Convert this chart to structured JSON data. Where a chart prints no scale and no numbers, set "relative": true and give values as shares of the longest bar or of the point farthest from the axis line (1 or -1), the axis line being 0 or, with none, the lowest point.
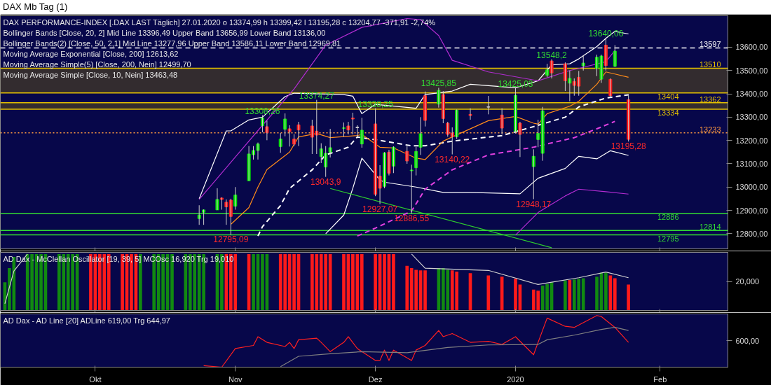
{
  "chart_data": [
    {
      "type": "candlestick",
      "title": "DAX Mb Tag (1)",
      "x": [
        "2019-10-24",
        "2019-10-25",
        "2019-10-28",
        "2019-10-29",
        "2019-10-30",
        "2019-10-31",
        "2019-11-01",
        "2019-11-04",
        "2019-11-05",
        "2019-11-06",
        "2019-11-07",
        "2019-11-08",
        "2019-11-11",
        "2019-11-12",
        "2019-11-13",
        "2019-11-14",
        "2019-11-15",
        "2019-11-18",
        "2019-11-19",
        "2019-11-20",
        "2019-11-21",
        "2019-11-22",
        "2019-11-25",
        "2019-11-26",
        "2019-11-27",
        "2019-11-28",
        "2019-11-29",
        "2019-12-02",
        "2019-12-03",
        "2019-12-04",
        "2019-12-05",
        "2019-12-06",
        "2019-12-09",
        "2019-12-10",
        "2019-12-11",
        "2019-12-12",
        "2019-12-13",
        "2019-12-16",
        "2019-12-17",
        "2019-12-18",
        "2019-12-19",
        "2019-12-20",
        "2019-12-23",
        "2019-12-27",
        "2019-12-30",
        "2020-01-02",
        "2020-01-03",
        "2020-01-06",
        "2020-01-07",
        "2020-01-08",
        "2020-01-09",
        "2020-01-10",
        "2020-01-13",
        "2020-01-14",
        "2020-01-15",
        "2020-01-16",
        "2020-01-17",
        "2020-01-20",
        "2020-01-21",
        "2020-01-22",
        "2020-01-23",
        "2020-01-24",
        "2020-01-27"
      ],
      "ohlc": [
        [
          12865,
          12922,
          12838,
          12880
        ],
        [
          12892,
          12904,
          12838,
          12902
        ],
        [
          12902,
          12995,
          12902,
          12947
        ],
        [
          12953,
          12956,
          12903,
          12947
        ],
        [
          12935,
          12947,
          12838,
          12915
        ],
        [
          12944,
          12950,
          12795.09,
          12874
        ],
        [
          12918,
          13000,
          12903,
          12966
        ],
        [
          13027,
          13176,
          13027,
          13142
        ],
        [
          13139,
          13176,
          13118,
          13157
        ],
        [
          13157,
          13191,
          13118,
          13185
        ],
        [
          13263,
          13308.26,
          13235,
          13297
        ],
        [
          13259,
          13285,
          13201,
          13233
        ],
        [
          13174,
          13232,
          13147,
          13206
        ],
        [
          13248,
          13316,
          13218,
          13292
        ],
        [
          13250,
          13265,
          13174,
          13238
        ],
        [
          13206,
          13227,
          13176,
          13184
        ],
        [
          13267,
          13280,
          13176,
          13245
        ],
        [
          13262,
          13289,
          13142,
          13214
        ],
        [
          13240,
          13374.27,
          13142,
          13223
        ],
        [
          13131,
          13188,
          13103,
          13164
        ],
        [
          13086,
          13176,
          13043.9,
          13145
        ],
        [
          13150,
          13250,
          13127,
          13169
        ],
        [
          13252,
          13277,
          13216,
          13254
        ],
        [
          13262,
          13280,
          13226,
          13245
        ],
        [
          13296,
          13319,
          13226,
          13292
        ],
        [
          13257,
          13265,
          13216,
          13255
        ],
        [
          13185,
          13297,
          13169,
          13244
        ],
        [
          13271,
          13338.25,
          12961,
          12969
        ],
        [
          13047,
          13094,
          12927.07,
          12995
        ],
        [
          13003,
          13150,
          12995,
          13147
        ],
        [
          13150,
          13160,
          13050,
          13059
        ],
        [
          13090,
          13175,
          13060,
          13171
        ],
        [
          13153,
          13175,
          13100,
          13112
        ],
        [
          13070,
          13096,
          12886.55,
          13073
        ],
        [
          13083,
          13172,
          13050,
          13153
        ],
        [
          13171,
          13300,
          13138,
          13229
        ],
        [
          13392,
          13410,
          13260,
          13286
        ],
        [
          13356,
          13425.85,
          13341,
          13415
        ],
        [
          13397,
          13412,
          13274,
          13294
        ],
        [
          13274,
          13280,
          13216,
          13226
        ],
        [
          13232,
          13256,
          13140.22,
          13216
        ],
        [
          13216,
          13333,
          13206,
          13330
        ],
        [
          13312,
          13338,
          13289,
          13307
        ],
        [
          13344,
          13391,
          13312,
          13343
        ],
        [
          13309,
          13338,
          13226,
          13253
        ],
        [
          13240,
          13425.03,
          13230,
          13394
        ],
        [
          13274,
          13280,
          13129,
          13226
        ],
        [
          13088,
          13162,
          12948.17,
          13132
        ],
        [
          13204,
          13289,
          13171,
          13230
        ],
        [
          13145,
          13344,
          13113,
          13327
        ],
        [
          13480,
          13529,
          13471,
          13503
        ],
        [
          13541,
          13548.2,
          13466,
          13490
        ],
        [
          13529,
          13535,
          13412,
          13456
        ],
        [
          13446,
          13500,
          13368,
          13466
        ],
        [
          13453,
          13466,
          13392,
          13436
        ],
        [
          13471,
          13498,
          13392,
          13433
        ],
        [
          13520,
          13565,
          13500,
          13532
        ],
        [
          13510,
          13568,
          13476,
          13557
        ],
        [
          13463,
          13568,
          13447,
          13562
        ],
        [
          13609,
          13640.06,
          13500,
          13521
        ],
        [
          13462,
          13466,
          13388,
          13392
        ],
        [
          13518,
          13609,
          13515,
          13583
        ],
        [
          13374.99,
          13399.42,
          13195.28,
          13204.77
        ]
      ],
      "colors": [
        "#00e600",
        "#00e600",
        "#00e600",
        "#ff1a1a",
        "#ff1a1a",
        "#ff1a1a",
        "#00e600",
        "#00e600",
        "#00e600",
        "#00e600",
        "#00e600",
        "#ff1a1a",
        "#00e600",
        "#00e600",
        "#ff1a1a",
        "#ff1a1a",
        "#ff1a1a",
        "#ff1a1a",
        "#ff1a1a",
        "#00e600",
        "#00e600",
        "#00e600",
        "#00e600",
        "#ff1a1a",
        "#ff1a1a",
        "#d9d9d9",
        "#00e600",
        "#ff1a1a",
        "#ff1a1a",
        "#00e600",
        "#ff1a1a",
        "#00e600",
        "#ff1a1a",
        "#00e600",
        "#00e600",
        "#00e600",
        "#ff1a1a",
        "#00e600",
        "#ff1a1a",
        "#ff1a1a",
        "#ff1a1a",
        "#00e600",
        "#ff1a1a",
        "#d9d9d9",
        "#ff1a1a",
        "#00e600",
        "#ff1a1a",
        "#00e600",
        "#00e600",
        "#00e600",
        "#00e600",
        "#ff1a1a",
        "#ff1a1a",
        "#00e600",
        "#ff1a1a",
        "#ff1a1a",
        "#00e600",
        "#00e600",
        "#00e600",
        "#ff1a1a",
        "#ff1a1a",
        "#00e600",
        "#ff1a1a"
      ],
      "series": [
        {
          "type": "line",
          "color": "#ffffff",
          "line_style": "solid",
          "x": [
            "2019-10-24",
            "2019-10-30",
            "2019-10-31",
            "2019-11-04",
            "2019-11-07",
            "2019-11-12",
            "2019-11-14",
            "2019-11-25",
            "2019-11-27",
            "2019-11-29",
            "2019-12-02",
            "2019-12-11",
            "2019-12-13",
            "2019-12-19",
            "2019-12-23",
            "2020-01-02",
            "2020-01-07",
            "2020-01-10",
            "2020-01-14",
            "2020-01-16",
            "2020-01-20",
            "2020-01-22",
            "2020-01-24",
            "2020-01-27"
          ],
          "values": [
            12950,
            13241,
            13241,
            13288,
            13300,
            13388,
            13403,
            13397,
            13390,
            13315,
            13355,
            13338,
            13397,
            13412,
            13441,
            13426,
            13456,
            13524,
            13529,
            13550,
            13603,
            13638,
            13668,
            13657
          ]
        },
        {
          "type": "line",
          "color": "#ffffff",
          "line_style": "dashed",
          "x": [
            "2019-11-06",
            "2019-11-07",
            "2019-11-11",
            "2019-11-13",
            "2019-11-18",
            "2019-11-21",
            "2019-11-26",
            "2019-11-28",
            "2019-12-03",
            "2019-12-10",
            "2019-12-13",
            "2019-12-19",
            "2019-12-30",
            "2020-01-07",
            "2020-01-13",
            "2020-01-16",
            "2020-01-22",
            "2020-01-27"
          ],
          "values": [
            12790,
            12830,
            12921,
            12994,
            13074,
            13138,
            13171,
            13215,
            13200,
            13177,
            13177,
            13197,
            13221,
            13265,
            13300,
            13344,
            13382,
            13396
          ]
        },
        {
          "type": "line",
          "color": "#ffffff",
          "line_style": "solid",
          "x": [
            "2019-11-21",
            "2019-11-25",
            "2019-11-27",
            "2019-11-29",
            "2019-12-03",
            "2019-12-04",
            "2019-12-11",
            "2019-12-17",
            "2019-12-23",
            "2020-01-03",
            "2020-01-07",
            "2020-01-13",
            "2020-01-16",
            "2020-01-20",
            "2020-01-23",
            "2020-01-27"
          ],
          "values": [
            12800,
            12880,
            12995,
            13124,
            13030,
            13021,
            13000,
            12977,
            12977,
            12971,
            13038,
            13080,
            13132,
            13121,
            13156,
            13136
          ]
        },
        {
          "type": "line",
          "color": "#b02cd0",
          "line_style": "solid",
          "x": [
            "2019-10-24",
            "2019-10-31",
            "2019-11-07",
            "2019-11-14",
            "2019-11-21",
            "2019-11-29",
            "2019-12-09",
            "2019-12-12",
            "2019-12-16",
            "2019-12-19",
            "2019-12-27",
            "2020-01-07",
            "2020-01-14",
            "2020-01-16",
            "2020-01-22",
            "2020-01-24"
          ],
          "values": [
            12947,
            13106,
            13265,
            13421,
            13609,
            13685,
            13723,
            13718,
            13650,
            13544,
            13494,
            13456,
            13500,
            13509,
            13538,
            13586
          ]
        },
        {
          "type": "line",
          "color": "#e040e0",
          "line_style": "dashed",
          "x": [
            "2019-11-28",
            "2019-12-02",
            "2019-12-10",
            "2019-12-13",
            "2019-12-19",
            "2019-12-27",
            "2020-01-06",
            "2020-01-09",
            "2020-01-15",
            "2020-01-20",
            "2020-01-24"
          ],
          "values": [
            12790,
            12824,
            12897,
            12991,
            13074,
            13138,
            13171,
            13185,
            13212,
            13250,
            13282
          ]
        },
        {
          "type": "line",
          "color": "#b02cd0",
          "line_style": "solid",
          "x": [
            "2020-01-02",
            "2020-01-07",
            "2020-01-13",
            "2020-01-16",
            "2020-01-22",
            "2020-01-27"
          ],
          "values": [
            12794,
            12891,
            12962,
            12991,
            12980,
            12970
          ]
        },
        {
          "type": "line",
          "color": "#ff8c1a",
          "line_style": "solid",
          "x": [
            "2019-10-31",
            "2019-11-04",
            "2019-11-06",
            "2019-11-08",
            "2019-11-13",
            "2019-11-15",
            "2019-11-19",
            "2019-11-22",
            "2019-11-28",
            "2019-11-29",
            "2019-12-03",
            "2019-12-06",
            "2019-12-11",
            "2019-12-13",
            "2019-12-17",
            "2019-12-19",
            "2019-12-27",
            "2020-01-02",
            "2020-01-06",
            "2020-01-07",
            "2020-01-09",
            "2020-01-14",
            "2020-01-16",
            "2020-01-20",
            "2020-01-22",
            "2020-01-24",
            "2020-01-27"
          ],
          "values": [
            12840,
            12912,
            13000,
            13075,
            13150,
            13215,
            13230,
            13212,
            13221,
            13226,
            13171,
            13168,
            13124,
            13118,
            13197,
            13215,
            13285,
            13303,
            13274,
            13270,
            13315,
            13347,
            13368,
            13441,
            13494,
            13485,
            13471
          ]
        },
        {
          "type": "line",
          "color": "#2ecc2e",
          "line_style": "solid",
          "x": [
            "2019-11-22",
            "2020-01-10"
          ],
          "values": [
            12994,
            12740
          ]
        }
      ],
      "ref_lines": [
        {
          "axis": "y",
          "value": 13597,
          "label": "13597",
          "color": "#ffffff",
          "line_style": "dashed"
        },
        {
          "axis": "y",
          "value": 12886,
          "label": "12886",
          "color": "#33dd33",
          "line_style": "solid"
        },
        {
          "axis": "y",
          "value": 12814,
          "label": "12814",
          "color": "#33dd33",
          "line_style": "solid"
        },
        {
          "axis": "y",
          "value": 12795,
          "label": "12795",
          "color": "#33dd33",
          "line_style": "solid"
        },
        {
          "axis": "y",
          "value": 13233,
          "label": "13233",
          "color": "#ff9a40",
          "line_style": "dotted"
        },
        {
          "axis": "y",
          "value": 13404,
          "label": "13404",
          "color": "#e6c200",
          "line_style": "solid"
        },
        {
          "axis": "y",
          "value": 13510,
          "label": "13510",
          "color": "#e6c200",
          "line_style": "solid"
        },
        {
          "axis": "y",
          "value": 13334,
          "label": "13334",
          "color": "#e6c200",
          "line_style": "solid"
        },
        {
          "axis": "y",
          "value": 13362,
          "label": "13362",
          "color": "#e6c200",
          "line_style": "solid"
        }
      ],
      "bands": [
        {
          "axis": "y",
          "from": 13404,
          "to": 13510,
          "color": "#6b5a10"
        },
        {
          "axis": "y",
          "from": 13334,
          "to": 13362,
          "color": "#6b5a10"
        }
      ],
      "annotations": [
        "DAX PERFORMANCE-INDEX [.DAX LAST Täglich]  27.01.2020  o 13374,99  h 13399,42  l 13195,28  c 13204,77  -371,91  -2,74%",
        "Bollinger Bands  [Close, 20, 2]  Mid Line 13396,49  Upper Band 13656,99  Lower Band 13136,00",
        "Bollinger Bands(2)  [Close, 50, 2,1]  Mid Line 13277,96  Upper Band 13586,11  Lower Band 12969,81",
        "Moving Average Exponential  [Close, 200]  12613,62",
        "Moving Average Simple(5)  [Close, 200, Nein]  12499,70",
        "Moving Average Simple  [Close, 10, Nein]  13463,48",
        {
          "text": "13308,26",
          "x": "2019-11-07",
          "y": 13308.26
        },
        {
          "text": "13374,27",
          "x": "2019-11-19",
          "y": 13374.27
        },
        {
          "text": "13338,25",
          "x": "2019-12-02",
          "y": 13338.25
        },
        {
          "text": "13425,85",
          "x": "2019-12-16",
          "y": 13425.85
        },
        {
          "text": "13425,03",
          "x": "2020-01-02",
          "y": 13425.03
        },
        {
          "text": "13548,2",
          "x": "2020-01-10",
          "y": 13548.2
        },
        {
          "text": "13640,06",
          "x": "2020-01-22",
          "y": 13640.06
        },
        {
          "text": "13043,9",
          "x": "2019-11-21",
          "y": 13043.9
        },
        {
          "text": "12927,07",
          "x": "2019-12-03",
          "y": 12927.07
        },
        {
          "text": "12886,55",
          "x": "2019-12-10",
          "y": 12886.55
        },
        {
          "text": "13140,22",
          "x": "2019-12-19",
          "y": 13140.22
        },
        {
          "text": "12948,17",
          "x": "2020-01-06",
          "y": 12948.17
        },
        {
          "text": "12795,09",
          "x": "2019-10-31",
          "y": 12795.09
        },
        {
          "text": "13195,28",
          "x": "2020-01-27",
          "y": 13195.28
        }
      ],
      "xlim": [
        "2019-09-10",
        "2020-02-18"
      ],
      "ylim": [
        12735,
        13735
      ],
      "yticks": [
        {
          "value": 12800,
          "label": "12800,00"
        },
        {
          "value": 12900,
          "label": "12900,00"
        },
        {
          "value": 13000,
          "label": "13000,00"
        },
        {
          "value": 13100,
          "label": "13100,00"
        },
        {
          "value": 13200,
          "label": "13200,00"
        },
        {
          "value": 13300,
          "label": "13300,00"
        },
        {
          "value": 13400,
          "label": "13400,00"
        },
        {
          "value": 13500,
          "label": "13500,00"
        },
        {
          "value": 13600,
          "label": "13600,00"
        }
      ],
      "tick_labels": "y",
      "xticks": [
        {
          "value": "2019-10-01",
          "label": null
        },
        {
          "value": "2019-11-01",
          "label": null
        },
        {
          "value": "2019-12-02",
          "label": null
        },
        {
          "value": "2020-01-02",
          "label": null
        },
        {
          "value": "2020-02-03",
          "label": null
        }
      ]
    },
    {
      "type": "bar",
      "relative": true,
      "tick_labels": false,
      "xlim": [
        "2019-09-10",
        "2020-02-18"
      ],
      "xticks": [
        {
          "value": "2019-10-01",
          "label": null
        },
        {
          "value": "2019-11-01",
          "label": null
        },
        {
          "value": "2019-12-02",
          "label": null
        },
        {
          "value": "2020-01-02",
          "label": null
        },
        {
          "value": "2020-02-03",
          "label": null
        }
      ],
      "x": [
        "2019-09-11",
        "2019-09-12",
        "2019-09-13",
        "2019-09-16",
        "2019-09-17",
        "2019-09-18",
        "2019-09-19",
        "2019-09-20",
        "2019-09-23",
        "2019-09-24",
        "2019-09-25",
        "2019-09-26",
        "2019-09-27",
        "2019-09-30",
        "2019-10-01",
        "2019-10-02",
        "2019-10-03",
        "2019-10-04",
        "2019-10-07",
        "2019-10-08",
        "2019-10-09",
        "2019-10-10",
        "2019-10-11",
        "2019-10-14",
        "2019-10-15",
        "2019-10-16",
        "2019-10-17",
        "2019-10-18",
        "2019-10-21",
        "2019-10-22",
        "2019-10-23",
        "2019-10-24",
        "2019-10-25",
        "2019-10-28",
        "2019-10-29",
        "2019-10-30",
        "2019-10-31",
        "2019-11-01",
        "2019-11-04",
        "2019-11-05",
        "2019-11-06",
        "2019-11-07",
        "2019-11-08",
        "2019-11-11",
        "2019-11-12",
        "2019-11-13",
        "2019-11-14",
        "2019-11-15",
        "2019-11-18",
        "2019-11-19",
        "2019-11-20",
        "2019-11-21",
        "2019-11-22",
        "2019-11-25",
        "2019-11-26",
        "2019-11-27",
        "2019-11-28",
        "2019-11-29",
        "2019-12-02",
        "2019-12-03",
        "2019-12-04",
        "2019-12-05",
        "2019-12-06",
        "2019-12-09",
        "2019-12-10",
        "2019-12-11",
        "2019-12-12",
        "2019-12-13",
        "2019-12-16",
        "2019-12-17",
        "2019-12-18",
        "2019-12-19",
        "2019-12-20",
        "2019-12-23",
        "2019-12-27",
        "2019-12-30",
        "2020-01-02",
        "2020-01-03",
        "2020-01-06",
        "2020-01-07",
        "2020-01-08",
        "2020-01-09",
        "2020-01-10",
        "2020-01-13",
        "2020-01-14",
        "2020-01-15",
        "2020-01-16",
        "2020-01-17",
        "2020-01-20",
        "2020-01-21",
        "2020-01-22",
        "2020-01-23",
        "2020-01-24",
        "2020-01-27"
      ],
      "values": [
        0.5,
        0.75,
        0.95,
        1,
        1,
        1,
        1,
        1,
        1,
        1,
        1,
        1,
        1,
        1,
        1,
        1,
        1,
        1,
        1,
        1,
        1,
        1,
        1,
        1,
        1,
        1,
        1,
        1,
        1,
        1,
        1,
        1,
        1,
        1,
        1,
        1,
        1,
        1,
        1,
        1,
        1,
        1,
        1,
        1,
        1,
        1,
        1,
        1,
        1,
        1,
        1,
        1,
        1,
        1,
        1,
        1,
        1,
        1,
        1,
        1,
        1,
        1,
        1,
        0.79,
        0.75,
        0.72,
        0.71,
        0.71,
        0.75,
        0.75,
        0.72,
        0.71,
        0.69,
        0.66,
        0.62,
        0.6,
        0.56,
        0.46,
        0.37,
        0.35,
        0.44,
        0.47,
        0.5,
        0.53,
        0.54,
        0.55,
        0.56,
        0.57,
        0.6,
        0.67,
        0.67,
        0.62,
        0.57,
        0.46
      ],
      "colors": [
        "#118a11",
        "#118a11",
        "#118a11",
        "#118a11",
        "#118a11",
        "#118a11",
        "#118a11",
        "#118a11",
        "#118a11",
        "#118a11",
        "#118a11",
        "#118a11",
        "#118a11",
        "#ff1a1a",
        "#ff1a1a",
        "#ff1a1a",
        "#ff1a1a",
        "#ff1a1a",
        "#ff1a1a",
        "#ff1a1a",
        "#ff1a1a",
        "#ff1a1a",
        "#118a11",
        "#118a11",
        "#118a11",
        "#118a11",
        "#118a11",
        "#118a11",
        "#118a11",
        "#118a11",
        "#118a11",
        "#118a11",
        "#118a11",
        "#118a11",
        "#118a11",
        "#ff1a1a",
        "#ff1a1a",
        "#ff1a1a",
        "#ff1a1a",
        "#118a11",
        "#118a11",
        "#118a11",
        "#118a11",
        "#ff1a1a",
        "#ff1a1a",
        "#ff1a1a",
        "#ff1a1a",
        "#ff1a1a",
        "#ff1a1a",
        "#ff1a1a",
        "#ff1a1a",
        "#ff1a1a",
        "#ff1a1a",
        "#ff1a1a",
        "#ff1a1a",
        "#ff1a1a",
        "#ff1a1a",
        "#ff1a1a",
        "#ff1a1a",
        "#ff1a1a",
        "#ff1a1a",
        "#ff1a1a",
        "#ff1a1a",
        "#ff1a1a",
        "#ff1a1a",
        "#ff1a1a",
        "#ff1a1a",
        "#ff1a1a",
        "#118a11",
        "#118a11",
        "#118a11",
        "#ff1a1a",
        "#ff1a1a",
        "#ff1a1a",
        "#ff1a1a",
        "#ff1a1a",
        "#ff1a1a",
        "#ff1a1a",
        "#ff1a1a",
        "#ff1a1a",
        "#118a11",
        "#118a11",
        "#118a11",
        "#118a11",
        "#ff1a1a",
        "#118a11",
        "#118a11",
        "#118a11",
        "#118a11",
        "#118a11",
        "#118a11",
        "#ff1a1a",
        "#ff1a1a",
        "#ff1a1a"
      ],
      "series": [
        {
          "type": "line",
          "color": "#d0d0d0",
          "line_style": "solid",
          "x": [
            "2019-09-11",
            "2019-09-13",
            "2019-09-16",
            "2019-10-15",
            "2019-12-10",
            "2019-12-13",
            "2019-12-27",
            "2020-01-07",
            "2020-01-10",
            "2020-01-16",
            "2020-01-22",
            "2020-01-27"
          ],
          "values": [
            0.12,
            0.7,
            1.0,
            null,
            1.0,
            0.75,
            0.71,
            0.46,
            0.5,
            0.58,
            0.68,
            0.58
          ]
        }
      ],
      "annotations": [
        "AD Dax - McClellan Oscillator  [19, 39, 5]  MCOsc 16,920  Trg 19,010",
        "20,000"
      ]
    },
    {
      "type": "line",
      "relative": true,
      "tick_labels": "x",
      "xlim": [
        "2019-09-10",
        "2020-02-18"
      ],
      "xticks": [
        {
          "value": "2019-10-01",
          "label": "Okt"
        },
        {
          "value": "2019-11-01",
          "label": "Nov"
        },
        {
          "value": "2019-12-02",
          "label": "Dez"
        },
        {
          "value": "2020-01-02",
          "label": "2020"
        },
        {
          "value": "2020-02-03",
          "label": "Feb"
        }
      ],
      "series": [
        {
          "color": "#ff2020",
          "line_style": "solid",
          "x": [
            "2019-10-25",
            "2019-10-29",
            "2019-11-01",
            "2019-11-05",
            "2019-11-06",
            "2019-11-08",
            "2019-11-12",
            "2019-11-13",
            "2019-11-14",
            "2019-11-15",
            "2019-11-19",
            "2019-11-20",
            "2019-11-22",
            "2019-11-25",
            "2019-11-26",
            "2019-11-28",
            "2019-12-02",
            "2019-12-03",
            "2019-12-04",
            "2019-12-05",
            "2019-12-06",
            "2019-12-10",
            "2019-12-11",
            "2019-12-13",
            "2019-12-16",
            "2019-12-17",
            "2019-12-19",
            "2019-12-23",
            "2019-12-27",
            "2019-12-30",
            "2020-01-02",
            "2020-01-06",
            "2020-01-07",
            "2020-01-09",
            "2020-01-13",
            "2020-01-15",
            "2020-01-20",
            "2020-01-21",
            "2020-01-24",
            "2020-01-27"
          ],
          "values": [
            0.03,
            0,
            0.36,
            0.42,
            0.59,
            0.48,
            0.4,
            0.48,
            0.36,
            0.53,
            0.56,
            0.48,
            0.3,
            0.48,
            0.59,
            0.36,
            0.13,
            0.13,
            0.33,
            0.13,
            0.33,
            0.13,
            0.33,
            0.42,
            0.71,
            0.59,
            0.65,
            0.48,
            0.5,
            0.44,
            0.59,
            0.24,
            0.48,
            0.95,
            0.79,
            0.77,
            1,
            0.98,
            0.77,
            0.48
          ]
        },
        {
          "color": "#808080",
          "line_style": "solid",
          "x": [
            "2019-11-11",
            "2019-11-15",
            "2019-11-22",
            "2019-11-29",
            "2019-12-09",
            "2019-12-18",
            "2019-12-27",
            "2020-01-07",
            "2020-01-09",
            "2020-01-15",
            "2020-01-21",
            "2020-01-24",
            "2020-01-27"
          ],
          "values": [
            0.01,
            0.21,
            0.26,
            0.3,
            0.28,
            0.38,
            0.43,
            0.44,
            0.53,
            0.62,
            0.73,
            0.77,
            0.71
          ]
        }
      ],
      "annotations": [
        "AD Dax - AD Line  [20]  ADLine 619,00  Trg 644,97",
        "600,00"
      ]
    }
  ]
}
